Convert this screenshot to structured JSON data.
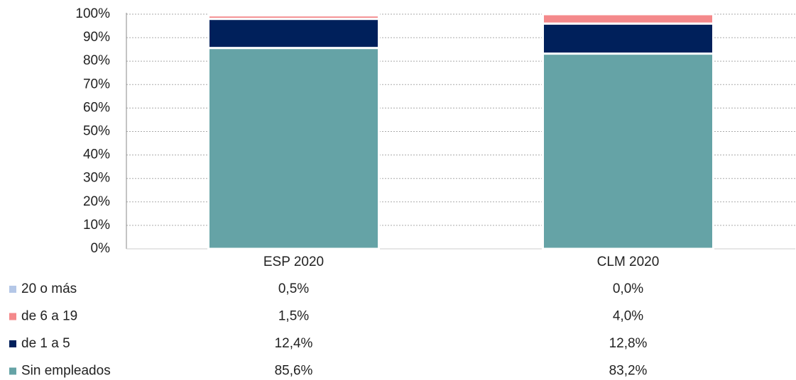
{
  "chart_data": {
    "type": "stacked_bar",
    "categories": [
      "ESP 2020",
      "CLM 2020"
    ],
    "series": [
      {
        "name": "Sin empleados",
        "color": "#65a3a6",
        "values": [
          85.6,
          83.2
        ],
        "value_labels": [
          "85,6%",
          "83,2%"
        ]
      },
      {
        "name": "de 1 a 5",
        "color": "#00205b",
        "values": [
          12.4,
          12.8
        ],
        "value_labels": [
          "12,4%",
          "12,8%"
        ]
      },
      {
        "name": "de 6 a 19",
        "color": "#f4898b",
        "values": [
          1.5,
          4.0
        ],
        "value_labels": [
          "1,5%",
          "4,0%"
        ]
      },
      {
        "name": "20 o más",
        "color": "#b4c7e7",
        "values": [
          0.5,
          0.0
        ],
        "value_labels": [
          "0,5%",
          "0,0%"
        ]
      }
    ],
    "ylim": [
      0,
      100
    ],
    "yticks": [
      {
        "value": 0,
        "label": "0%"
      },
      {
        "value": 10,
        "label": "10%"
      },
      {
        "value": 20,
        "label": "20%"
      },
      {
        "value": 30,
        "label": "30%"
      },
      {
        "value": 40,
        "label": "40%"
      },
      {
        "value": 50,
        "label": "50%"
      },
      {
        "value": 60,
        "label": "60%"
      },
      {
        "value": 70,
        "label": "70%"
      },
      {
        "value": 80,
        "label": "80%"
      },
      {
        "value": 90,
        "label": "90%"
      },
      {
        "value": 100,
        "label": "100%"
      }
    ],
    "grid": true
  }
}
